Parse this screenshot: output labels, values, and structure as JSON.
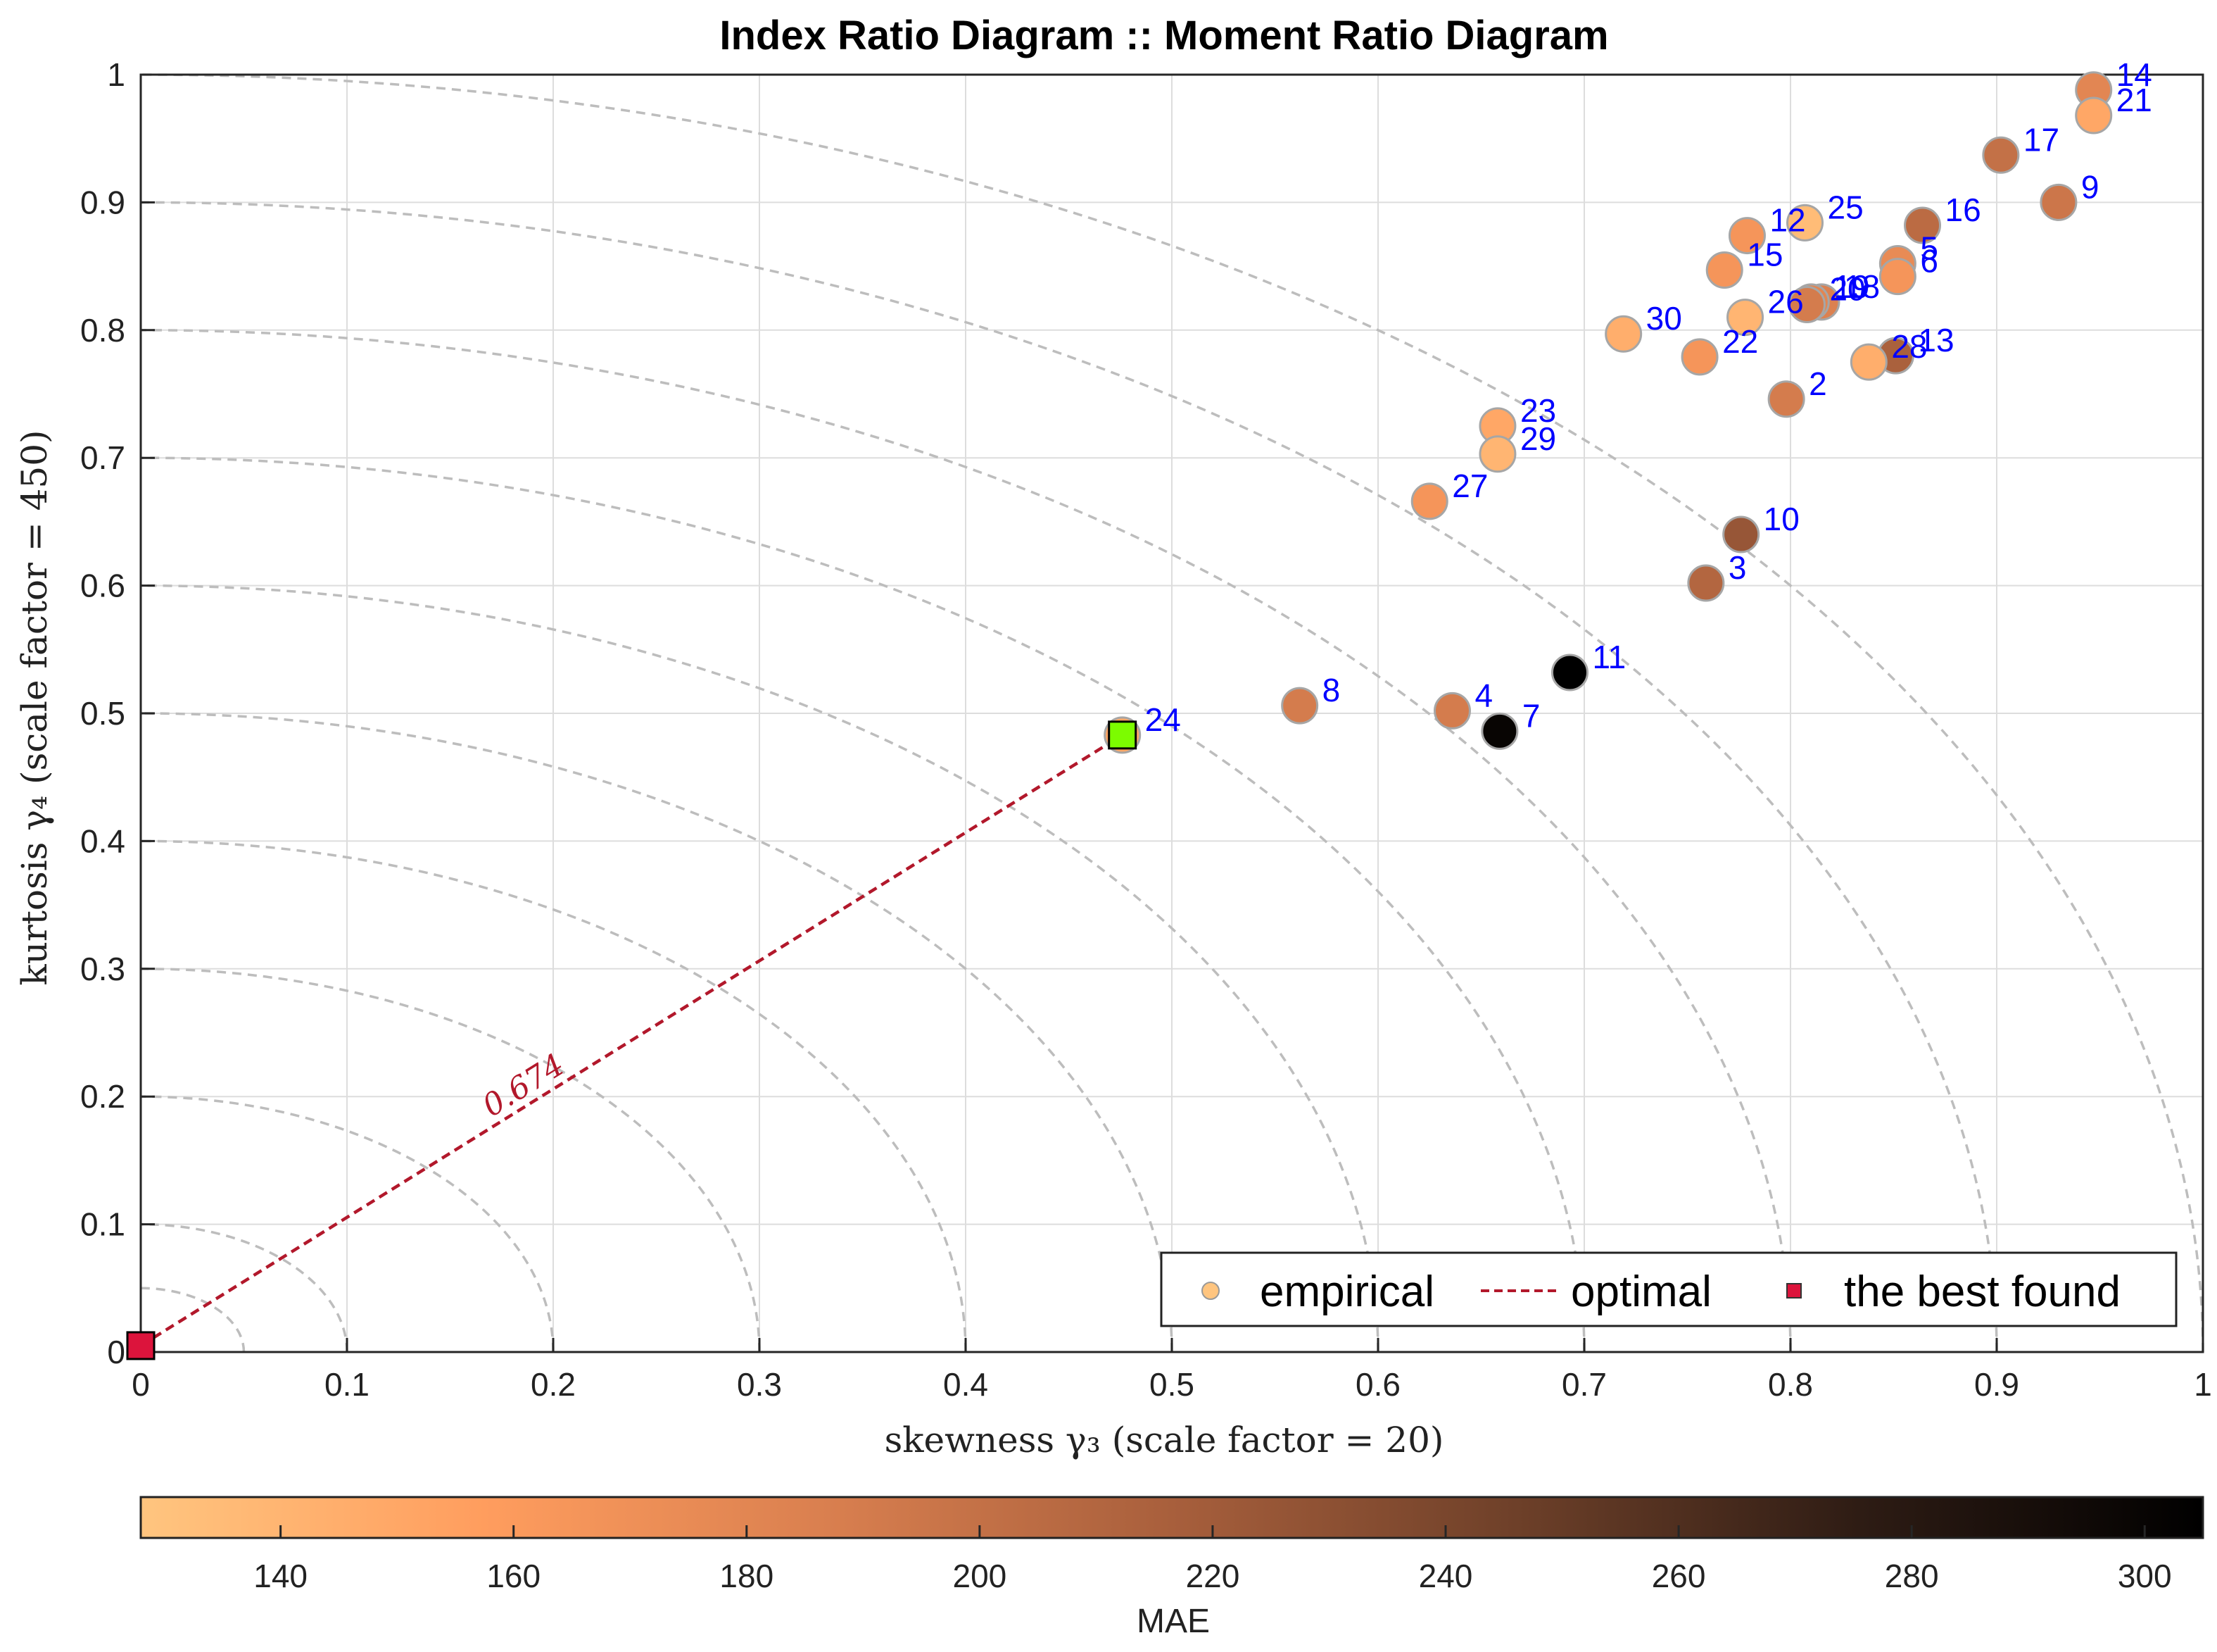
{
  "chart_data": {
    "type": "scatter",
    "title": "Index Ratio Diagram :: Moment Ratio Diagram",
    "xlabel": "skewness γ₃ (scale factor = 20)",
    "ylabel": "kurtosis γ₄ (scale factor = 450)",
    "xlim": [
      0,
      1
    ],
    "ylim": [
      0,
      1
    ],
    "xticks": [
      0,
      0.1,
      0.2,
      0.3,
      0.4,
      0.5,
      0.6,
      0.7,
      0.8,
      0.9,
      1
    ],
    "yticks": [
      0,
      0.1,
      0.2,
      0.3,
      0.4,
      0.5,
      0.6,
      0.7,
      0.8,
      0.9,
      1
    ],
    "grid": true,
    "arc_radii": [
      0.05,
      0.1,
      0.2,
      0.3,
      0.4,
      0.5,
      0.6,
      0.7,
      0.8,
      0.9,
      1.0
    ],
    "points": [
      {
        "id": "2",
        "x": 0.798,
        "y": 0.746,
        "mae": 190
      },
      {
        "id": "3",
        "x": 0.759,
        "y": 0.602,
        "mae": 210
      },
      {
        "id": "4",
        "x": 0.636,
        "y": 0.502,
        "mae": 190
      },
      {
        "id": "5",
        "x": 0.852,
        "y": 0.852,
        "mae": 175
      },
      {
        "id": "6",
        "x": 0.852,
        "y": 0.842,
        "mae": 165
      },
      {
        "id": "7",
        "x": 0.659,
        "y": 0.486,
        "mae": 300
      },
      {
        "id": "8",
        "x": 0.562,
        "y": 0.506,
        "mae": 190
      },
      {
        "id": "9",
        "x": 0.93,
        "y": 0.9,
        "mae": 195
      },
      {
        "id": "10",
        "x": 0.776,
        "y": 0.64,
        "mae": 225
      },
      {
        "id": "11",
        "x": 0.693,
        "y": 0.532,
        "mae": 305
      },
      {
        "id": "12",
        "x": 0.779,
        "y": 0.874,
        "mae": 165
      },
      {
        "id": "13",
        "x": 0.851,
        "y": 0.78,
        "mae": 215
      },
      {
        "id": "14",
        "x": 0.947,
        "y": 0.988,
        "mae": 180
      },
      {
        "id": "15",
        "x": 0.768,
        "y": 0.847,
        "mae": 165
      },
      {
        "id": "16",
        "x": 0.864,
        "y": 0.882,
        "mae": 205
      },
      {
        "id": "17",
        "x": 0.902,
        "y": 0.937,
        "mae": 200
      },
      {
        "id": "18",
        "x": 0.815,
        "y": 0.822,
        "mae": 185
      },
      {
        "id": "19",
        "x": 0.81,
        "y": 0.822,
        "mae": 180
      },
      {
        "id": "20",
        "x": 0.808,
        "y": 0.82,
        "mae": 190
      },
      {
        "id": "21",
        "x": 0.947,
        "y": 0.968,
        "mae": 150
      },
      {
        "id": "22",
        "x": 0.756,
        "y": 0.779,
        "mae": 165
      },
      {
        "id": "23",
        "x": 0.658,
        "y": 0.725,
        "mae": 150
      },
      {
        "id": "24",
        "x": 0.476,
        "y": 0.483,
        "mae": 150
      },
      {
        "id": "25",
        "x": 0.807,
        "y": 0.884,
        "mae": 135
      },
      {
        "id": "26",
        "x": 0.778,
        "y": 0.81,
        "mae": 140
      },
      {
        "id": "27",
        "x": 0.625,
        "y": 0.666,
        "mae": 165
      },
      {
        "id": "28",
        "x": 0.838,
        "y": 0.775,
        "mae": 145
      },
      {
        "id": "29",
        "x": 0.658,
        "y": 0.703,
        "mae": 140
      },
      {
        "id": "30",
        "x": 0.719,
        "y": 0.797,
        "mae": 145
      }
    ],
    "best_point": {
      "id": "24",
      "x": 0.476,
      "y": 0.483
    },
    "origin_point": {
      "x": 0,
      "y": 0.005
    },
    "optimal_distance_label": "0.674",
    "legend": {
      "position": "bottom-right",
      "entries": [
        "empirical",
        "optimal",
        "the best found"
      ]
    },
    "colorbar": {
      "label": "MAE",
      "min": 128,
      "max": 305,
      "ticks": [
        140,
        160,
        180,
        200,
        220,
        240,
        260,
        280,
        300
      ],
      "colormap": [
        "#ffc57f",
        "#ff9d5e",
        "#d97f4f",
        "#a85f3c",
        "#6e4029",
        "#2e1c14",
        "#000000"
      ]
    },
    "colors": {
      "optimal_line": "#b2182b",
      "best_found_marker": "#dc143c",
      "best_point_marker": "#7cfc00",
      "label_text": "#0000ff",
      "grid": "#dddddd",
      "arc": "#bdbdbd"
    }
  }
}
